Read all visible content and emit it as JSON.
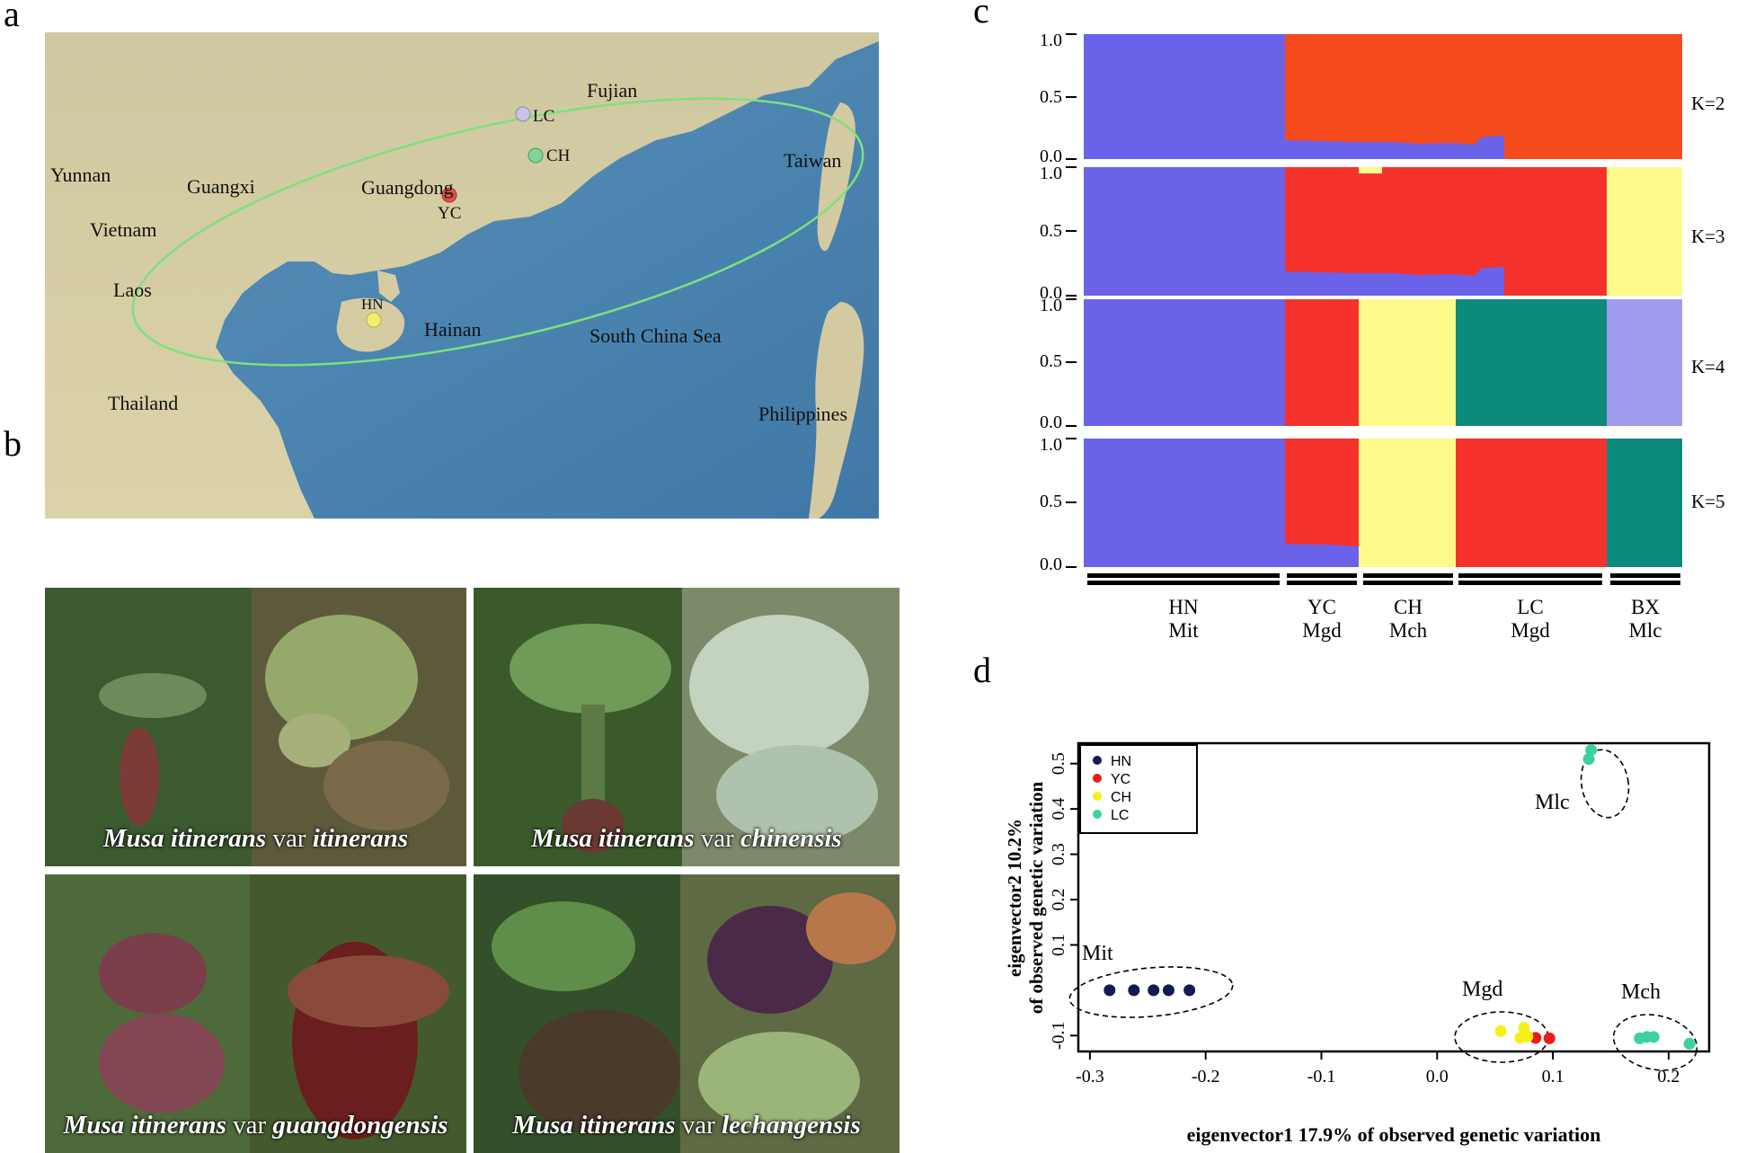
{
  "panels": {
    "a": "a",
    "b": "b",
    "c": "c",
    "d": "d"
  },
  "map": {
    "labels": [
      {
        "text": "Fujian",
        "key": "fujian"
      },
      {
        "text": "LC",
        "key": "lc"
      },
      {
        "text": "CH",
        "key": "ch"
      },
      {
        "text": "Yunnan",
        "key": "yunnan"
      },
      {
        "text": "Guangxi",
        "key": "guangxi"
      },
      {
        "text": "Guangdong",
        "key": "guangdong"
      },
      {
        "text": "YC",
        "key": "yc"
      },
      {
        "text": "Taiwan",
        "key": "taiwan"
      },
      {
        "text": "Vietnam",
        "key": "vietnam"
      },
      {
        "text": "Laos",
        "key": "laos"
      },
      {
        "text": "HN",
        "key": "hn"
      },
      {
        "text": "Hainan",
        "key": "hainan"
      },
      {
        "text": "South China Sea",
        "key": "scs"
      },
      {
        "text": "Thailand",
        "key": "thailand"
      },
      {
        "text": "Philippines",
        "key": "philippines"
      }
    ],
    "site_colors": {
      "LC": "#c8c4e6",
      "CH": "#7fd49a",
      "YC": "#e0504a",
      "HN": "#f4ee70"
    },
    "range_ellipse_color": "#7fe07f",
    "land_color": "#d9cfa6",
    "sea_color": "#4f88b2"
  },
  "photos": [
    {
      "genus": "Musa itinerans",
      "var": " var ",
      "epithet": "itinerans"
    },
    {
      "genus": "Musa itinerans",
      "var": " var ",
      "epithet": "chinensis"
    },
    {
      "genus": "Musa itinerans",
      "var": " var ",
      "epithet": "guangdongensis"
    },
    {
      "genus": "Musa itinerans",
      "var": " var ",
      "epithet": "lechangensis"
    }
  ],
  "structure": {
    "y_ticks": [
      "1.0",
      "0.5",
      "0.0"
    ],
    "k_labels": [
      "K=2",
      "K=3",
      "K=4",
      "K=5"
    ],
    "groups": [
      {
        "pop": "HN",
        "taxon": "Mit"
      },
      {
        "pop": "YC",
        "taxon": "Mgd"
      },
      {
        "pop": "CH",
        "taxon": "Mch"
      },
      {
        "pop": "LC",
        "taxon": "Mgd"
      },
      {
        "pop": "BX",
        "taxon": "Mlc"
      }
    ],
    "colors": {
      "blue": "#6a63ea",
      "red": "#f5312b",
      "orangered": "#f54a1c",
      "yellow": "#fdf98a",
      "teal": "#0c8a7b",
      "lavender": "#9f9bef"
    }
  },
  "chart_data": {
    "type": "scatter",
    "xlabel": "eigenvector1 17.9% of observed genetic variation",
    "ylabel_line1": "eigenvector2 10.2%",
    "ylabel_line2": "of observed genetic variation",
    "x_ticks": [
      "-0.3",
      "-0.2",
      "-0.1",
      "0.0",
      "0.1",
      "0.2"
    ],
    "y_ticks": [
      "0.5",
      "0.4",
      "0.3",
      "0.2",
      "0.1",
      "-0.1"
    ],
    "xlim": [
      -0.31,
      0.235
    ],
    "ylim": [
      -0.135,
      0.545
    ],
    "legend": [
      {
        "name": "HN",
        "color": "#141a52"
      },
      {
        "name": "YC",
        "color": "#ee1a1a"
      },
      {
        "name": "CH",
        "color": "#f7ef18"
      },
      {
        "name": "LC",
        "color": "#3dd19c"
      }
    ],
    "cluster_labels": [
      {
        "text": "Mlc"
      },
      {
        "text": "Mit"
      },
      {
        "text": "Mgd"
      },
      {
        "text": "Mch"
      }
    ],
    "series": [
      {
        "name": "HN",
        "values": [
          [
            -0.283,
            0.0
          ],
          [
            -0.262,
            0.0
          ],
          [
            -0.245,
            0.0
          ],
          [
            -0.232,
            0.0
          ],
          [
            -0.214,
            0.0
          ]
        ]
      },
      {
        "name": "YC",
        "values": [
          [
            0.085,
            -0.105
          ],
          [
            0.097,
            -0.106
          ]
        ]
      },
      {
        "name": "CH",
        "values": [
          [
            0.055,
            -0.09
          ],
          [
            0.075,
            -0.083
          ],
          [
            0.072,
            -0.105
          ],
          [
            0.078,
            -0.102
          ]
        ]
      },
      {
        "name": "LC",
        "values": [
          [
            0.133,
            0.53
          ],
          [
            0.131,
            0.51
          ],
          [
            0.175,
            -0.106
          ],
          [
            0.181,
            -0.103
          ],
          [
            0.187,
            -0.103
          ],
          [
            0.218,
            -0.118
          ]
        ]
      }
    ]
  }
}
